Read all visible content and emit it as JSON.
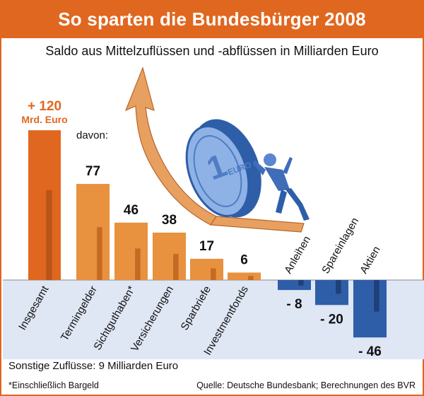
{
  "title": "So sparten die Bundesbürger 2008",
  "subtitle": "Saldo aus Mittelzuflüssen und -abflüssen in Milliarden Euro",
  "colors": {
    "header_bg": "#e0671f",
    "positive_bar": "#e8913f",
    "positive_bar_dark": "#c46a22",
    "total_bar": "#e0671f",
    "negative_bar": "#2f5ea8",
    "negative_bar_dark": "#1f3f78",
    "negative_zone": "#dfe6f4",
    "value_label_total": "#e0671f"
  },
  "chart_data": {
    "type": "bar",
    "title": "So sparten die Bundesbürger 2008",
    "subtitle": "Saldo aus Mittelzuflüssen und -abflüssen in Milliarden Euro",
    "unit": "Milliarden Euro",
    "total": {
      "category": "Insgesamt",
      "value": 120,
      "label_value": "+ 120",
      "label_unit": "Mrd. Euro"
    },
    "breakdown_label": "davon:",
    "categories": [
      "Termingelder",
      "Sichtguthaben*",
      "Versicherungen",
      "Sparbriefe",
      "Investmentfonds",
      "Anleihen",
      "Spareinlagen",
      "Aktien"
    ],
    "values": [
      77,
      46,
      38,
      17,
      6,
      -8,
      -20,
      -46
    ],
    "value_labels": [
      "77",
      "46",
      "38",
      "17",
      "6",
      "- 8",
      "- 20",
      "- 46"
    ],
    "grid": false
  },
  "notes": {
    "other_inflows": "Sonstige Zuflüsse: 9 Milliarden Euro",
    "footnote": "*Einschließlich Bargeld",
    "source": "Quelle: Deutsche Bundesbank; Berechnungen des BVR"
  }
}
